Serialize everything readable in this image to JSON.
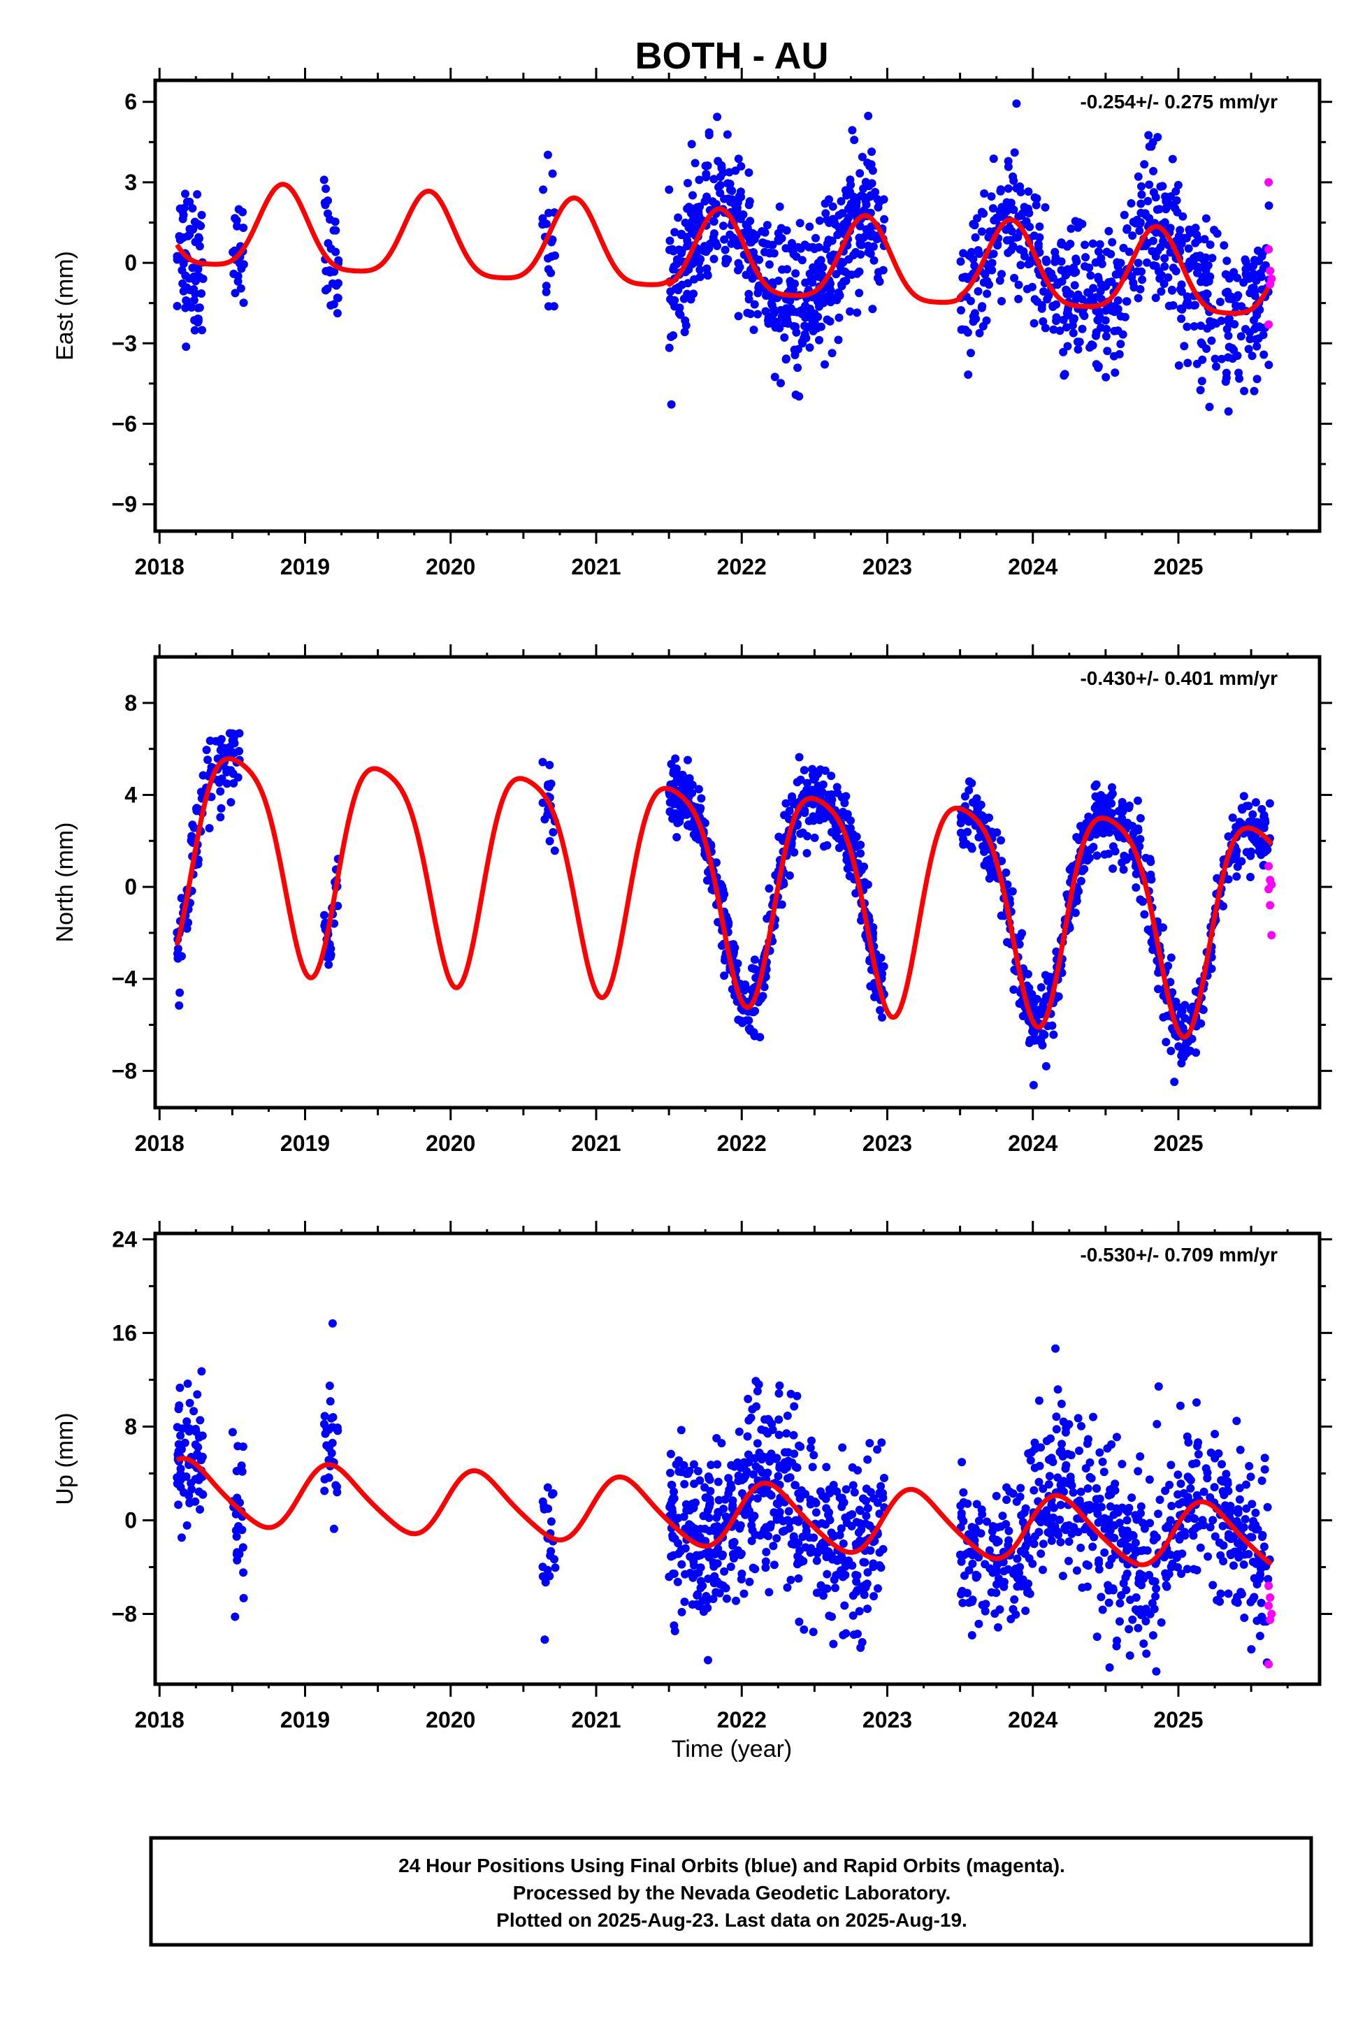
{
  "title": "BOTH - AU",
  "xlabel": "Time (year)",
  "colors": {
    "final": "#0000ff",
    "rapid": "#ff00ff",
    "model": "#ff0000",
    "frame": "#000000"
  },
  "footer": {
    "line1": "24 Hour Positions Using Final Orbits (blue) and Rapid Orbits (magenta).",
    "line2": "Processed by the Nevada Geodetic Laboratory.",
    "line3": "Plotted on 2025-Aug-23. Last data on 2025-Aug-19."
  },
  "chart_data": [
    {
      "type": "scatter",
      "component": "east",
      "ylabel": "East (mm)",
      "rate": "-0.254+/- 0.275 mm/yr",
      "xlim": [
        2017.97,
        2025.97
      ],
      "ylim": [
        -10.0,
        6.8
      ],
      "xticks": [
        2018,
        2019,
        2020,
        2021,
        2022,
        2023,
        2024,
        2025
      ],
      "yticks": [
        -9,
        -6,
        -3,
        0,
        3,
        6
      ],
      "model": {
        "annual_amp": 1.55,
        "annual_peak": 0.85,
        "semiannual_amp": 0.35,
        "semiannual_peak": 0.35,
        "trend": -0.254,
        "ref_epoch": 2021.9,
        "offsets": [
          {
            "from": 2018.0,
            "to": 2021.5,
            "value": 0.25
          },
          {
            "from": 2021.5,
            "to": 2023.5,
            "value": 0.1
          },
          {
            "from": 2023.5,
            "to": 2026.0,
            "value": 0.2
          }
        ]
      },
      "segments": [
        {
          "start": 2018.12,
          "end": 2018.3,
          "n": 70,
          "sd": 1.4
        },
        {
          "start": 2018.5,
          "end": 2018.58,
          "n": 25,
          "sd": 0.9
        },
        {
          "start": 2019.13,
          "end": 2019.23,
          "n": 30,
          "sd": 1.3
        },
        {
          "start": 2020.63,
          "end": 2020.72,
          "n": 22,
          "sd": 1.4
        },
        {
          "start": 2021.5,
          "end": 2022.98,
          "n": 560,
          "sd": 1.3
        },
        {
          "start": 2023.5,
          "end": 2025.63,
          "n": 640,
          "sd": 1.4
        }
      ],
      "rapid": [
        [
          2025.62,
          3.0
        ],
        [
          2025.62,
          0.5
        ],
        [
          2025.63,
          -0.3
        ],
        [
          2025.63,
          -0.8
        ],
        [
          2025.62,
          -2.3
        ],
        [
          2025.64,
          -0.6
        ]
      ]
    },
    {
      "type": "scatter",
      "component": "north",
      "ylabel": "North (mm)",
      "rate": "-0.430+/- 0.401 mm/yr",
      "xlim": [
        2017.97,
        2025.97
      ],
      "ylim": [
        -9.6,
        10.0
      ],
      "xticks": [
        2018,
        2019,
        2020,
        2021,
        2022,
        2023,
        2024,
        2025
      ],
      "yticks": [
        -8,
        -4,
        0,
        4,
        8
      ],
      "model": {
        "annual_amp": 4.6,
        "annual_peak": 0.53,
        "semiannual_amp": 0.9,
        "semiannual_peak": 0.3,
        "trend": -0.43,
        "ref_epoch": 2021.9,
        "offsets": [
          {
            "from": 2018.0,
            "to": 2026.0,
            "value": 0.3
          }
        ]
      },
      "segments": [
        {
          "start": 2018.12,
          "end": 2018.55,
          "n": 110,
          "sd": 0.9
        },
        {
          "start": 2019.13,
          "end": 2019.23,
          "n": 30,
          "sd": 0.8
        },
        {
          "start": 2020.63,
          "end": 2020.72,
          "n": 20,
          "sd": 0.9
        },
        {
          "start": 2021.5,
          "end": 2022.98,
          "n": 560,
          "sd": 0.8
        },
        {
          "start": 2023.5,
          "end": 2025.63,
          "n": 640,
          "sd": 0.8
        }
      ],
      "rapid": [
        [
          2025.62,
          0.9
        ],
        [
          2025.63,
          0.3
        ],
        [
          2025.62,
          -0.1
        ],
        [
          2025.64,
          0.1
        ],
        [
          2025.63,
          -0.8
        ],
        [
          2025.64,
          -2.1
        ]
      ]
    },
    {
      "type": "scatter",
      "component": "up",
      "ylabel": "Up (mm)",
      "rate": "-0.530+/- 0.709 mm/yr",
      "xlim": [
        2017.97,
        2025.97
      ],
      "ylim": [
        -14.0,
        24.5
      ],
      "xticks": [
        2018,
        2019,
        2020,
        2021,
        2022,
        2023,
        2024,
        2025
      ],
      "yticks": [
        -8,
        0,
        8,
        16,
        24
      ],
      "model": {
        "annual_amp": 2.7,
        "annual_peak": 0.2,
        "semiannual_amp": 0.4,
        "semiannual_peak": 0.1,
        "trend": -0.53,
        "ref_epoch": 2021.9,
        "offsets": [
          {
            "from": 2018.0,
            "to": 2026.0,
            "value": 0.4
          }
        ]
      },
      "segments": [
        {
          "start": 2018.12,
          "end": 2018.3,
          "n": 70,
          "sd": 3.2
        },
        {
          "start": 2018.5,
          "end": 2018.58,
          "n": 25,
          "sd": 3.4
        },
        {
          "start": 2019.13,
          "end": 2019.23,
          "n": 30,
          "sd": 3.4
        },
        {
          "start": 2020.63,
          "end": 2020.72,
          "n": 22,
          "sd": 3.6
        },
        {
          "start": 2021.5,
          "end": 2022.98,
          "n": 560,
          "sd": 3.9
        },
        {
          "start": 2023.5,
          "end": 2025.63,
          "n": 640,
          "sd": 3.8
        }
      ],
      "rapid": [
        [
          2025.62,
          -5.6
        ],
        [
          2025.63,
          -6.6
        ],
        [
          2025.62,
          -7.3
        ],
        [
          2025.64,
          -8.0
        ],
        [
          2025.63,
          -8.5
        ],
        [
          2025.62,
          -12.3
        ]
      ]
    }
  ]
}
